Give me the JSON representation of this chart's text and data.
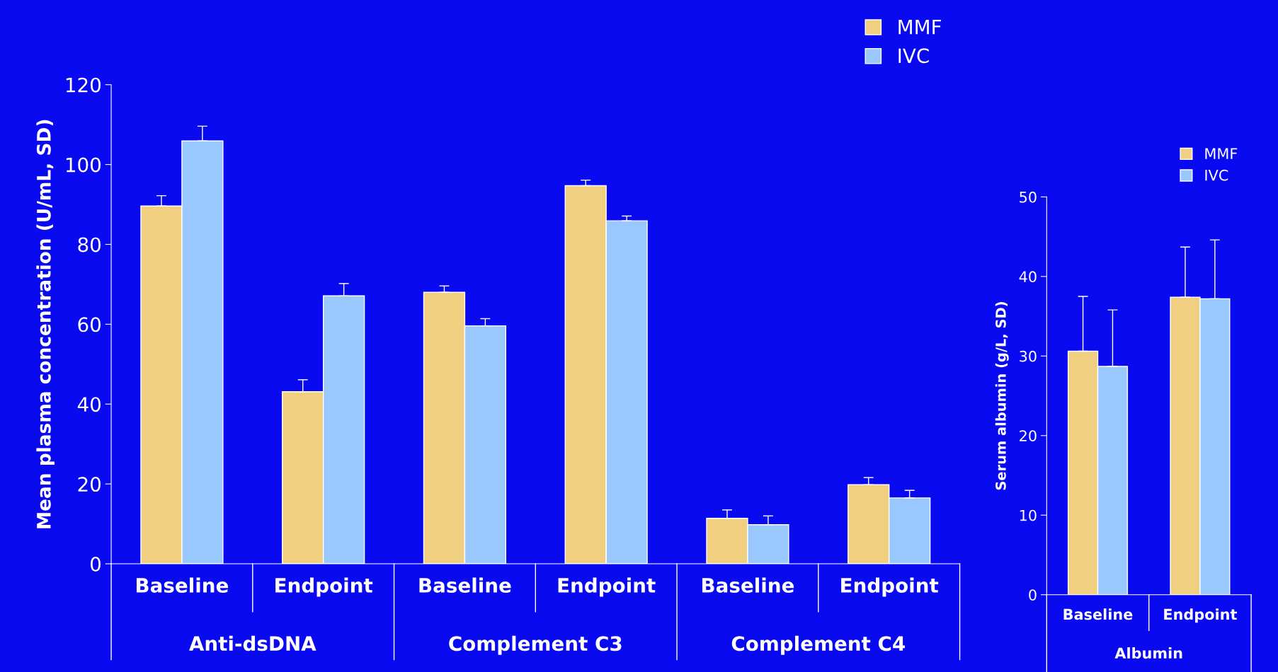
{
  "chart_data": [
    {
      "type": "bar",
      "ylabel": "Mean plasma concentration (U/mL, SD)",
      "categories": [
        "Baseline",
        "Endpoint",
        "Baseline",
        "Endpoint",
        "Baseline",
        "Endpoint"
      ],
      "series": [
        {
          "name": "MMF",
          "color": "#f0d080",
          "values": [
            89.6,
            43.1,
            68.0,
            94.7,
            11.4,
            19.8
          ],
          "errors": [
            [
              89.6,
              92.2
            ],
            [
              43.1,
              46.1
            ],
            [
              68.0,
              69.6
            ],
            [
              94.7,
              96.1
            ],
            [
              11.4,
              13.5
            ],
            [
              19.8,
              21.6
            ]
          ]
        },
        {
          "name": "IVC",
          "color": "#99c8ff",
          "values": [
            105.9,
            67.1,
            59.6,
            85.9,
            9.8,
            16.5
          ],
          "errors": [
            [
              105.9,
              109.6
            ],
            [
              67.1,
              70.2
            ],
            [
              59.6,
              61.4
            ],
            [
              85.9,
              87.1
            ],
            [
              9.8,
              12.0
            ],
            [
              16.5,
              18.4
            ]
          ]
        }
      ],
      "annotations": [
        "Anti-dsDNA",
        "Complement C3",
        "Complement C4"
      ],
      "ylim": [
        0,
        120
      ],
      "yticks": [
        0,
        20,
        40,
        60,
        80,
        100,
        120
      ],
      "grid": false,
      "legend": "top right"
    },
    {
      "type": "bar",
      "ylabel": "Serum albumin (g/L, SD)",
      "categories": [
        "Baseline",
        "Endpoint"
      ],
      "series": [
        {
          "name": "MMF",
          "color": "#f0d080",
          "values": [
            30.6,
            37.4
          ],
          "errors": [
            [
              30.6,
              37.5
            ],
            [
              37.4,
              43.7
            ]
          ]
        },
        {
          "name": "IVC",
          "color": "#99c8ff",
          "values": [
            28.7,
            37.2
          ],
          "errors": [
            [
              28.7,
              35.8
            ],
            [
              37.2,
              44.6
            ]
          ]
        }
      ],
      "annotations": [
        "Albumin"
      ],
      "ylim": [
        0,
        50
      ],
      "yticks": [
        0,
        10,
        20,
        30,
        40,
        50
      ],
      "grid": false,
      "legend": "top right"
    }
  ]
}
